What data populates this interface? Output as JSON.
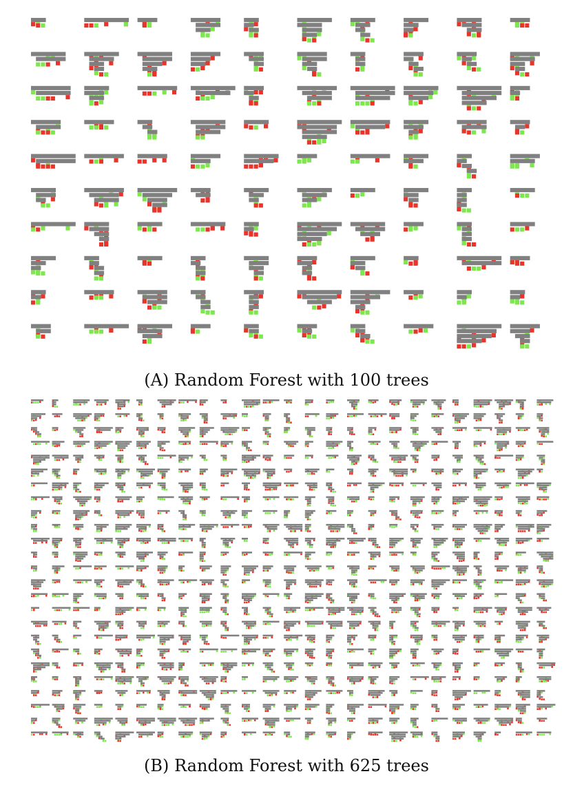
{
  "figure": {
    "panel_a": {
      "label": "(A)",
      "caption": "Random Forest with 100 trees",
      "tree_count": 100,
      "grid_columns": 10,
      "grid_rows": 10
    },
    "panel_b": {
      "label": "(B)",
      "caption": "Random Forest with 625 trees",
      "tree_count": 625,
      "grid_columns": 25,
      "grid_rows": 25
    }
  },
  "colors": {
    "internal_node": "#808080",
    "leaf_class_a": "#e8352b",
    "leaf_class_b": "#7ee64f",
    "caption_text": "#111111",
    "background": "#ffffff"
  }
}
